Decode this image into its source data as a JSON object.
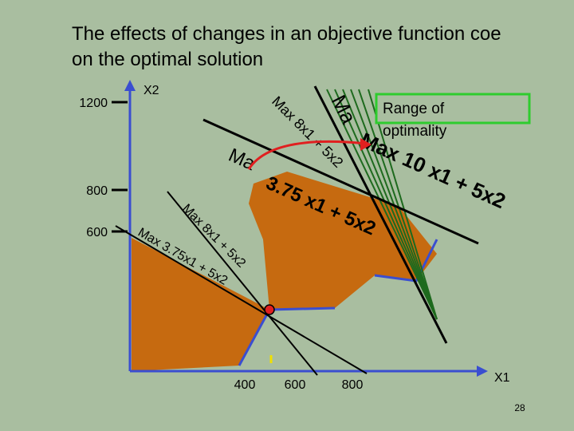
{
  "header": {
    "title_lines": [
      "The effects of changes in an objective function coe",
      "on the optimal solution"
    ]
  },
  "axes": {
    "y_label": "X2",
    "x_label": "X1",
    "y_tick_labels": [
      "1200",
      "800",
      "600"
    ],
    "x_tick_labels": [
      "400",
      "600",
      "800"
    ]
  },
  "objective_lines": [
    {
      "label": "Max 8x1 + 5x2"
    },
    {
      "label": "Max 3.75x1 + 5x2"
    },
    {
      "label": "Max 10 x1 + 5x2"
    }
  ],
  "fragments": {
    "top_left": "Ma",
    "middle": "3.75 x1 + 5x2",
    "top": "Max 8x1 + 5x2",
    "top_big": "Ma"
  },
  "callout": {
    "text_lines": [
      "Range of",
      "optimality"
    ]
  },
  "footer": {
    "page_number": "28"
  }
}
